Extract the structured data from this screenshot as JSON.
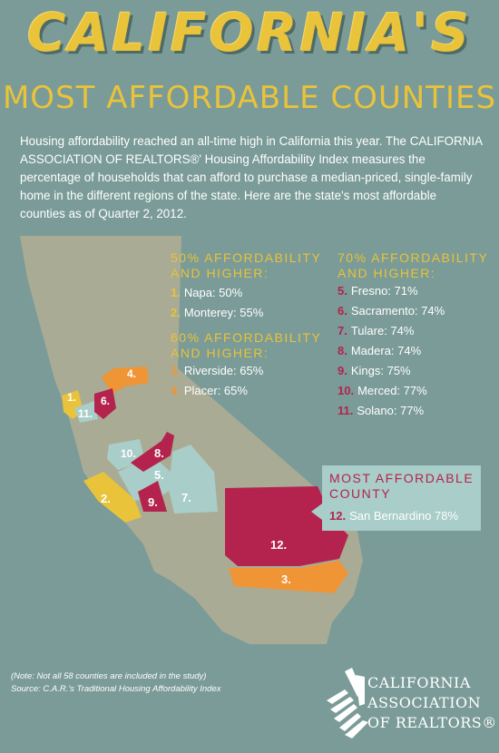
{
  "title": "CALIFORNIA'S",
  "subtitle": "MOST AFFORDABLE COUNTIES",
  "intro": "Housing affordability reached an all-time high in California this year. The CALIFORNIA ASSOCIATION OF REALTORS®' Housing Affordability Index measures the percentage of households that can afford to purchase a median-priced, single-family home in the different regions of the state. Here are the state's most affordable counties as of Quarter 2, 2012.",
  "groups": {
    "g50": {
      "heading": "50% AFFORDABILITY AND HIGHER:",
      "items": [
        {
          "num": "1.",
          "text": "Napa: 50%"
        },
        {
          "num": "2.",
          "text": "Monterey: 55%"
        }
      ]
    },
    "g60": {
      "heading": "60% AFFORDABILITY AND HIGHER:",
      "items": [
        {
          "num": "3.",
          "text": "Riverside: 65%"
        },
        {
          "num": "4.",
          "text": "Placer: 65%"
        }
      ]
    },
    "g70": {
      "heading": "70% AFFORDABILITY AND HIGHER:",
      "items": [
        {
          "num": "5.",
          "text": "Fresno: 71%"
        },
        {
          "num": "6.",
          "text": "Sacramento: 74%"
        },
        {
          "num": "7.",
          "text": "Tulare: 74%"
        },
        {
          "num": "8.",
          "text": "Madera: 74%"
        },
        {
          "num": "9.",
          "text": "Kings: 75%"
        },
        {
          "num": "10.",
          "text": "Merced: 77%"
        },
        {
          "num": "11.",
          "text": "Solano: 77%"
        }
      ]
    },
    "most": {
      "heading": "MOST AFFORDABLE COUNTY",
      "item": {
        "num": "12.",
        "text": "San Bernardino 78%"
      }
    }
  },
  "map_labels": {
    "c1": "1.",
    "c2": "2.",
    "c3": "3.",
    "c4": "4.",
    "c5": "5.",
    "c6": "6.",
    "c7": "7.",
    "c8": "8.",
    "c9": "9.",
    "c10": "10.",
    "c11": "11.",
    "c12": "12."
  },
  "note_line1": "(Note: Not all 58 counties are included in the study)",
  "note_line2": "Source: C.A.R.'s Traditional Housing Affordability Index",
  "logo": {
    "line1": "CALIFORNIA",
    "line2": "ASSOCIATION",
    "line3": "OF REALTORS®"
  },
  "colors": {
    "background": "#7a9b97",
    "land": "#a9ab95",
    "yellow": "#e9c33a",
    "orange": "#ef9535",
    "crimson": "#b3234d",
    "teal": "#a9cdc8"
  }
}
